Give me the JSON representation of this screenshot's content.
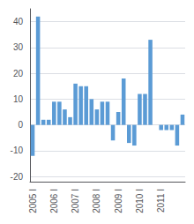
{
  "chart_data": {
    "type": "bar",
    "categories": [
      "2005 I",
      null,
      null,
      null,
      "2006 I",
      null,
      null,
      null,
      "2007 I",
      null,
      null,
      null,
      "2008 I",
      null,
      null,
      null,
      "2009 I",
      null,
      null,
      null,
      "2010 I",
      null,
      null,
      null,
      "2011 I",
      null,
      null,
      null,
      null
    ],
    "values": [
      -12,
      42,
      2,
      2,
      9,
      9,
      6,
      3,
      16,
      15,
      15,
      10,
      6,
      9,
      9,
      -6,
      5,
      18,
      -7,
      -8,
      12,
      12,
      33,
      0,
      -2,
      -2,
      -2,
      -8,
      4
    ],
    "color": "#5b9bd5",
    "ylim": [
      -22,
      45
    ],
    "yticks": [
      -20,
      -10,
      0,
      10,
      20,
      30,
      40
    ],
    "grid": true
  }
}
